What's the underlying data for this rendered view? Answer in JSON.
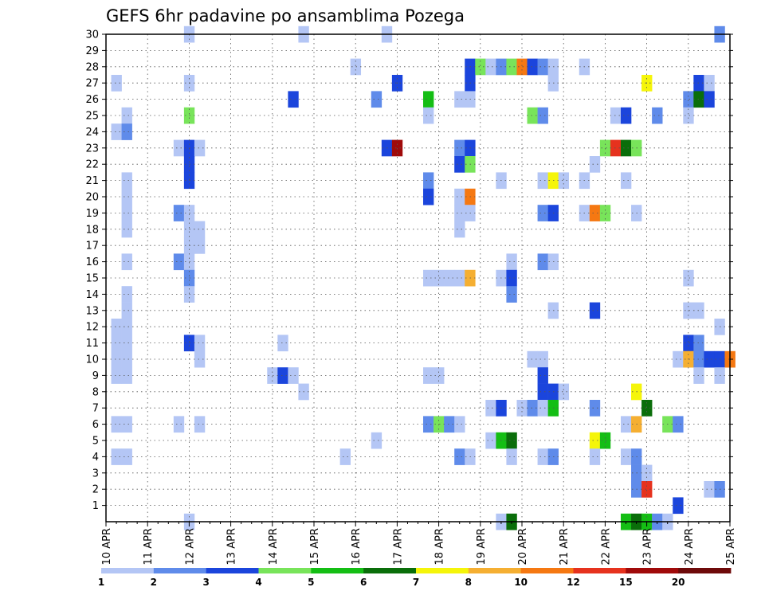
{
  "chart_data": {
    "type": "heatmap",
    "title": "GEFS 6hr padavine po ansamblima Pozega",
    "xlabel": "",
    "ylabel": "",
    "x_tick_labels": [
      "10 APR",
      "11 APR",
      "12 APR",
      "13 APR",
      "14 APR",
      "15 APR",
      "16 APR",
      "17 APR",
      "18 APR",
      "19 APR",
      "20 APR",
      "21 APR",
      "22 APR",
      "23 APR",
      "24 APR",
      "25 APR"
    ],
    "y_tick_labels": [
      "1",
      "2",
      "3",
      "4",
      "5",
      "6",
      "7",
      "8",
      "9",
      "10",
      "11",
      "12",
      "13",
      "14",
      "15",
      "16",
      "17",
      "18",
      "19",
      "20",
      "21",
      "22",
      "23",
      "24",
      "25",
      "26",
      "27",
      "28",
      "29",
      "30"
    ],
    "ensemble_range": [
      0,
      30
    ],
    "time_steps": 60,
    "grid": true,
    "colorbar": {
      "placement": "bottom",
      "labels": [
        "1",
        "2",
        "3",
        "4",
        "5",
        "6",
        "7",
        "8",
        "10",
        "12",
        "15",
        "20"
      ],
      "colors": [
        "#b4c6f5",
        "#5f8bea",
        "#1b45dc",
        "#78e45a",
        "#14be14",
        "#0a6e0a",
        "#f5f50a",
        "#f5af32",
        "#f57812",
        "#e6321e",
        "#a00a0a",
        "#6e0a0a"
      ]
    },
    "cells": [
      [
        8,
        30,
        1
      ],
      [
        19,
        30,
        1
      ],
      [
        27,
        30,
        1
      ],
      [
        59,
        30,
        2
      ],
      [
        24,
        28,
        1
      ],
      [
        35,
        28,
        3
      ],
      [
        36,
        28,
        4
      ],
      [
        37,
        28,
        1
      ],
      [
        38,
        28,
        2
      ],
      [
        39,
        28,
        4
      ],
      [
        40,
        28,
        9
      ],
      [
        41,
        28,
        3
      ],
      [
        42,
        28,
        2
      ],
      [
        43,
        28,
        1
      ],
      [
        46,
        28,
        1
      ],
      [
        1,
        27,
        1
      ],
      [
        8,
        27,
        1
      ],
      [
        28,
        27,
        3
      ],
      [
        35,
        27,
        3
      ],
      [
        43,
        27,
        1
      ],
      [
        52,
        27,
        7
      ],
      [
        57,
        27,
        3
      ],
      [
        58,
        27,
        1
      ],
      [
        18,
        26,
        3
      ],
      [
        26,
        26,
        2
      ],
      [
        31,
        26,
        5
      ],
      [
        34,
        26,
        1
      ],
      [
        35,
        26,
        1
      ],
      [
        56,
        26,
        2
      ],
      [
        57,
        26,
        6
      ],
      [
        58,
        26,
        3
      ],
      [
        2,
        25,
        1
      ],
      [
        8,
        25,
        4
      ],
      [
        31,
        25,
        1
      ],
      [
        41,
        25,
        4
      ],
      [
        42,
        25,
        2
      ],
      [
        49,
        25,
        1
      ],
      [
        50,
        25,
        3
      ],
      [
        53,
        25,
        2
      ],
      [
        56,
        25,
        1
      ],
      [
        1,
        24,
        1
      ],
      [
        2,
        24,
        2
      ],
      [
        7,
        23,
        1
      ],
      [
        8,
        23,
        3
      ],
      [
        9,
        23,
        1
      ],
      [
        27,
        23,
        3
      ],
      [
        28,
        23,
        11
      ],
      [
        34,
        23,
        2
      ],
      [
        35,
        23,
        3
      ],
      [
        48,
        23,
        4
      ],
      [
        49,
        23,
        10
      ],
      [
        50,
        23,
        6
      ],
      [
        51,
        23,
        4
      ],
      [
        8,
        22,
        3
      ],
      [
        34,
        22,
        3
      ],
      [
        35,
        22,
        4
      ],
      [
        47,
        22,
        1
      ],
      [
        2,
        21,
        1
      ],
      [
        8,
        21,
        3
      ],
      [
        31,
        21,
        2
      ],
      [
        38,
        21,
        1
      ],
      [
        42,
        21,
        1
      ],
      [
        43,
        21,
        7
      ],
      [
        44,
        21,
        1
      ],
      [
        46,
        21,
        1
      ],
      [
        50,
        21,
        1
      ],
      [
        2,
        20,
        1
      ],
      [
        31,
        20,
        3
      ],
      [
        34,
        20,
        1
      ],
      [
        35,
        20,
        9
      ],
      [
        2,
        19,
        1
      ],
      [
        7,
        19,
        2
      ],
      [
        8,
        19,
        1
      ],
      [
        34,
        19,
        1
      ],
      [
        35,
        19,
        1
      ],
      [
        42,
        19,
        2
      ],
      [
        43,
        19,
        3
      ],
      [
        46,
        19,
        1
      ],
      [
        47,
        19,
        9
      ],
      [
        48,
        19,
        4
      ],
      [
        51,
        19,
        1
      ],
      [
        2,
        18,
        1
      ],
      [
        8,
        18,
        1
      ],
      [
        9,
        18,
        1
      ],
      [
        34,
        18,
        1
      ],
      [
        8,
        17,
        1
      ],
      [
        9,
        17,
        1
      ],
      [
        2,
        16,
        1
      ],
      [
        7,
        16,
        2
      ],
      [
        8,
        16,
        1
      ],
      [
        39,
        16,
        1
      ],
      [
        42,
        16,
        2
      ],
      [
        43,
        16,
        1
      ],
      [
        8,
        15,
        2
      ],
      [
        31,
        15,
        1
      ],
      [
        32,
        15,
        1
      ],
      [
        33,
        15,
        1
      ],
      [
        34,
        15,
        1
      ],
      [
        35,
        15,
        8
      ],
      [
        38,
        15,
        1
      ],
      [
        39,
        15,
        3
      ],
      [
        56,
        15,
        1
      ],
      [
        2,
        14,
        1
      ],
      [
        8,
        14,
        1
      ],
      [
        39,
        14,
        2
      ],
      [
        2,
        13,
        1
      ],
      [
        43,
        13,
        1
      ],
      [
        47,
        13,
        3
      ],
      [
        56,
        13,
        1
      ],
      [
        57,
        13,
        1
      ],
      [
        1,
        12,
        1
      ],
      [
        2,
        12,
        1
      ],
      [
        59,
        12,
        1
      ],
      [
        1,
        11,
        1
      ],
      [
        2,
        11,
        1
      ],
      [
        8,
        11,
        3
      ],
      [
        9,
        11,
        1
      ],
      [
        17,
        11,
        1
      ],
      [
        56,
        11,
        3
      ],
      [
        57,
        11,
        2
      ],
      [
        1,
        10,
        1
      ],
      [
        2,
        10,
        1
      ],
      [
        9,
        10,
        1
      ],
      [
        41,
        10,
        1
      ],
      [
        42,
        10,
        1
      ],
      [
        55,
        10,
        1
      ],
      [
        56,
        10,
        8
      ],
      [
        57,
        10,
        2
      ],
      [
        58,
        10,
        3
      ],
      [
        59,
        10,
        3
      ],
      [
        60,
        10,
        9
      ],
      [
        1,
        9,
        1
      ],
      [
        2,
        9,
        1
      ],
      [
        16,
        9,
        1
      ],
      [
        17,
        9,
        3
      ],
      [
        18,
        9,
        1
      ],
      [
        31,
        9,
        1
      ],
      [
        32,
        9,
        1
      ],
      [
        42,
        9,
        3
      ],
      [
        57,
        9,
        1
      ],
      [
        59,
        9,
        1
      ],
      [
        19,
        8,
        1
      ],
      [
        42,
        8,
        3
      ],
      [
        43,
        8,
        3
      ],
      [
        44,
        8,
        1
      ],
      [
        51,
        8,
        7
      ],
      [
        37,
        7,
        1
      ],
      [
        38,
        7,
        3
      ],
      [
        40,
        7,
        1
      ],
      [
        41,
        7,
        2
      ],
      [
        42,
        7,
        1
      ],
      [
        43,
        7,
        5
      ],
      [
        47,
        7,
        2
      ],
      [
        52,
        7,
        6
      ],
      [
        1,
        6,
        1
      ],
      [
        2,
        6,
        1
      ],
      [
        7,
        6,
        1
      ],
      [
        9,
        6,
        1
      ],
      [
        31,
        6,
        2
      ],
      [
        32,
        6,
        4
      ],
      [
        33,
        6,
        2
      ],
      [
        34,
        6,
        1
      ],
      [
        50,
        6,
        1
      ],
      [
        51,
        6,
        8
      ],
      [
        54,
        6,
        4
      ],
      [
        55,
        6,
        2
      ],
      [
        26,
        5,
        1
      ],
      [
        37,
        5,
        1
      ],
      [
        38,
        5,
        5
      ],
      [
        39,
        5,
        6
      ],
      [
        47,
        5,
        7
      ],
      [
        48,
        5,
        5
      ],
      [
        1,
        4,
        1
      ],
      [
        2,
        4,
        1
      ],
      [
        23,
        4,
        1
      ],
      [
        34,
        4,
        2
      ],
      [
        35,
        4,
        1
      ],
      [
        39,
        4,
        1
      ],
      [
        42,
        4,
        1
      ],
      [
        43,
        4,
        2
      ],
      [
        47,
        4,
        1
      ],
      [
        50,
        4,
        1
      ],
      [
        51,
        4,
        2
      ],
      [
        51,
        3,
        2
      ],
      [
        52,
        3,
        1
      ],
      [
        51,
        2,
        2
      ],
      [
        52,
        2,
        10
      ],
      [
        58,
        2,
        1
      ],
      [
        59,
        2,
        2
      ],
      [
        55,
        1,
        3
      ],
      [
        8,
        0,
        1
      ],
      [
        38,
        0,
        1
      ],
      [
        39,
        0,
        6
      ],
      [
        50,
        0,
        5
      ],
      [
        51,
        0,
        6
      ],
      [
        52,
        0,
        5
      ],
      [
        53,
        0,
        2
      ],
      [
        54,
        0,
        1
      ]
    ]
  }
}
